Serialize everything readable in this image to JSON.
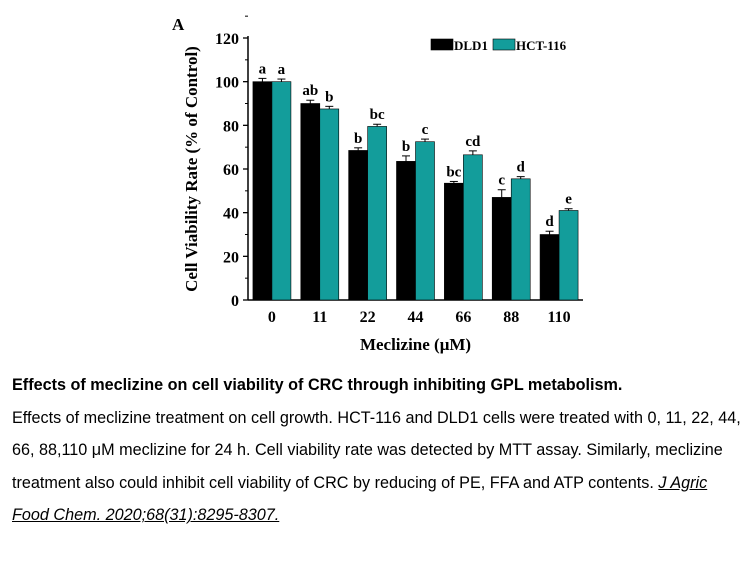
{
  "figure": {
    "panel_label": "A",
    "caption_title": "Effects of meclizine on cell viability of CRC through inhibiting GPL metabolism.",
    "caption_body": "Effects of meclizine treatment on cell growth. HCT-116 and DLD1 cells were treated with 0, 11, 22, 44, 66, 88,110 μM meclizine for 24 h. Cell viability rate was detected by MTT assay. Similarly, meclizine treatment also could inhibit cell viability of CRC by reducing of PE, FFA and ATP contents.",
    "citation": "J Agric Food Chem. 2020;68(31):8295-8307."
  },
  "chart_data": {
    "type": "bar",
    "title": "",
    "xlabel": "Meclizine (μM)",
    "ylabel": "Cell Viability Rate  (% of Control)",
    "categories": [
      "0",
      "11",
      "22",
      "44",
      "66",
      "88",
      "110"
    ],
    "ylim": [
      0,
      120
    ],
    "yticks": [
      "0",
      "20",
      "40",
      "60",
      "80",
      "100",
      "120"
    ],
    "legend_position": "top-right",
    "series": [
      {
        "name": "DLD1",
        "color": "#000000",
        "values": [
          100,
          90,
          68.5,
          63.5,
          53.5,
          47,
          30
        ],
        "errors": [
          1.5,
          1.5,
          1.2,
          2.5,
          0.8,
          3.5,
          1.5
        ],
        "labels": [
          "a",
          "ab",
          "b",
          "b",
          "bc",
          "c",
          "d"
        ]
      },
      {
        "name": "HCT-116",
        "color": "#139d9b",
        "values": [
          100,
          87.5,
          79.5,
          72.5,
          66.5,
          55.5,
          41
        ],
        "errors": [
          1.2,
          1.2,
          1.0,
          1.2,
          1.8,
          1.0,
          0.8
        ],
        "labels": [
          "a",
          "b",
          "bc",
          "c",
          "cd",
          "d",
          "e"
        ]
      }
    ]
  }
}
